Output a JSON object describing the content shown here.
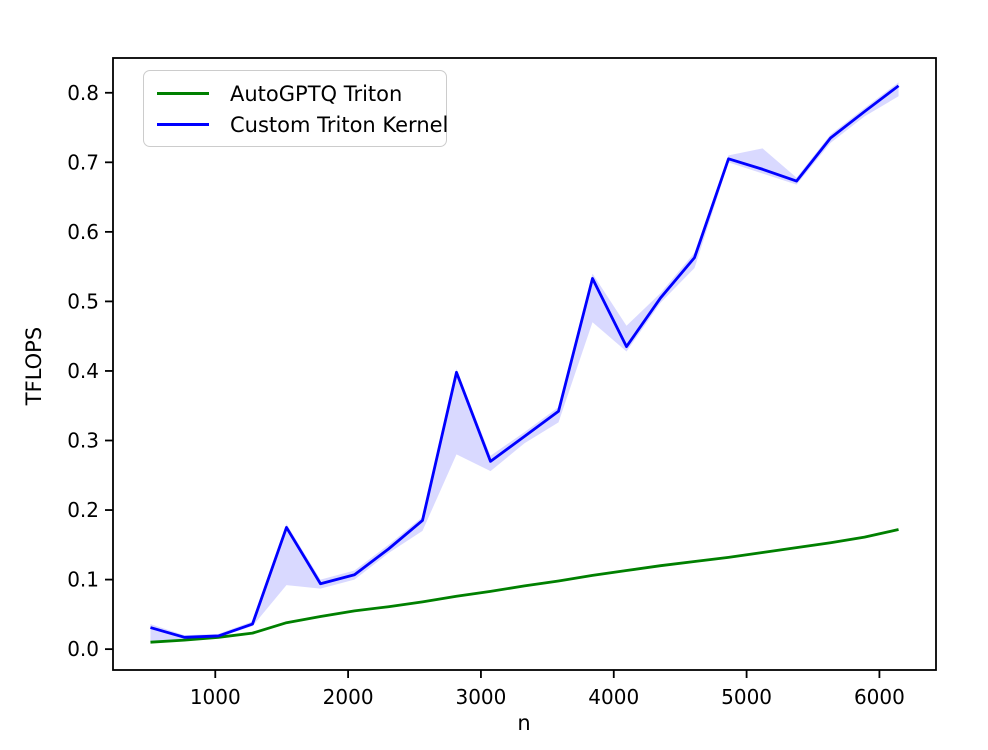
{
  "chart_data": {
    "type": "line",
    "title": "",
    "xlabel": "n",
    "ylabel": "TFLOPS",
    "grid": false,
    "legend_position": "upper left",
    "xlim": [
      230,
      6426
    ],
    "ylim": [
      -0.03,
      0.85
    ],
    "xticks": {
      "values": [
        1000,
        2000,
        3000,
        4000,
        5000,
        6000
      ],
      "labels": [
        "1000",
        "2000",
        "3000",
        "4000",
        "5000",
        "6000"
      ]
    },
    "yticks": {
      "values": [
        0.0,
        0.1,
        0.2,
        0.3,
        0.4,
        0.5,
        0.6,
        0.7,
        0.8
      ],
      "labels": [
        "0.0",
        "0.1",
        "0.2",
        "0.3",
        "0.4",
        "0.5",
        "0.6",
        "0.7",
        "0.8"
      ]
    },
    "x": [
      512,
      768,
      1024,
      1280,
      1536,
      1792,
      2048,
      2304,
      2560,
      2816,
      3072,
      3328,
      3584,
      3840,
      4096,
      4352,
      4608,
      4864,
      5120,
      5376,
      5632,
      5888,
      6144
    ],
    "series": [
      {
        "name": "AutoGPTQ Triton",
        "color": "#008000",
        "values": [
          0.01,
          0.013,
          0.017,
          0.023,
          0.038,
          0.047,
          0.055,
          0.061,
          0.068,
          0.076,
          0.083,
          0.091,
          0.098,
          0.106,
          0.113,
          0.12,
          0.126,
          0.132,
          0.139,
          0.146,
          0.153,
          0.161,
          0.172
        ]
      },
      {
        "name": "Custom Triton Kernel",
        "color": "#0000ff",
        "values": [
          0.031,
          0.017,
          0.019,
          0.036,
          0.175,
          0.094,
          0.107,
          0.144,
          0.185,
          0.398,
          0.27,
          0.306,
          0.342,
          0.533,
          0.435,
          0.505,
          0.563,
          0.705,
          0.69,
          0.673,
          0.735,
          0.773,
          0.81
        ],
        "band": {
          "lower": [
            0.01,
            0.015,
            0.017,
            0.033,
            0.092,
            0.087,
            0.1,
            0.138,
            0.17,
            0.28,
            0.256,
            0.296,
            0.326,
            0.47,
            0.428,
            0.498,
            0.548,
            0.7,
            0.684,
            0.668,
            0.728,
            0.766,
            0.795
          ],
          "upper": [
            0.036,
            0.02,
            0.022,
            0.04,
            0.18,
            0.1,
            0.113,
            0.15,
            0.19,
            0.403,
            0.278,
            0.312,
            0.348,
            0.54,
            0.465,
            0.512,
            0.57,
            0.71,
            0.72,
            0.678,
            0.74,
            0.778,
            0.815
          ],
          "color": "#0000ff",
          "opacity": 0.15
        }
      }
    ]
  },
  "colors": {
    "background": "#ffffff",
    "axis": "#000000",
    "tick_text": "#000000",
    "legend_border": "#cccccc"
  }
}
